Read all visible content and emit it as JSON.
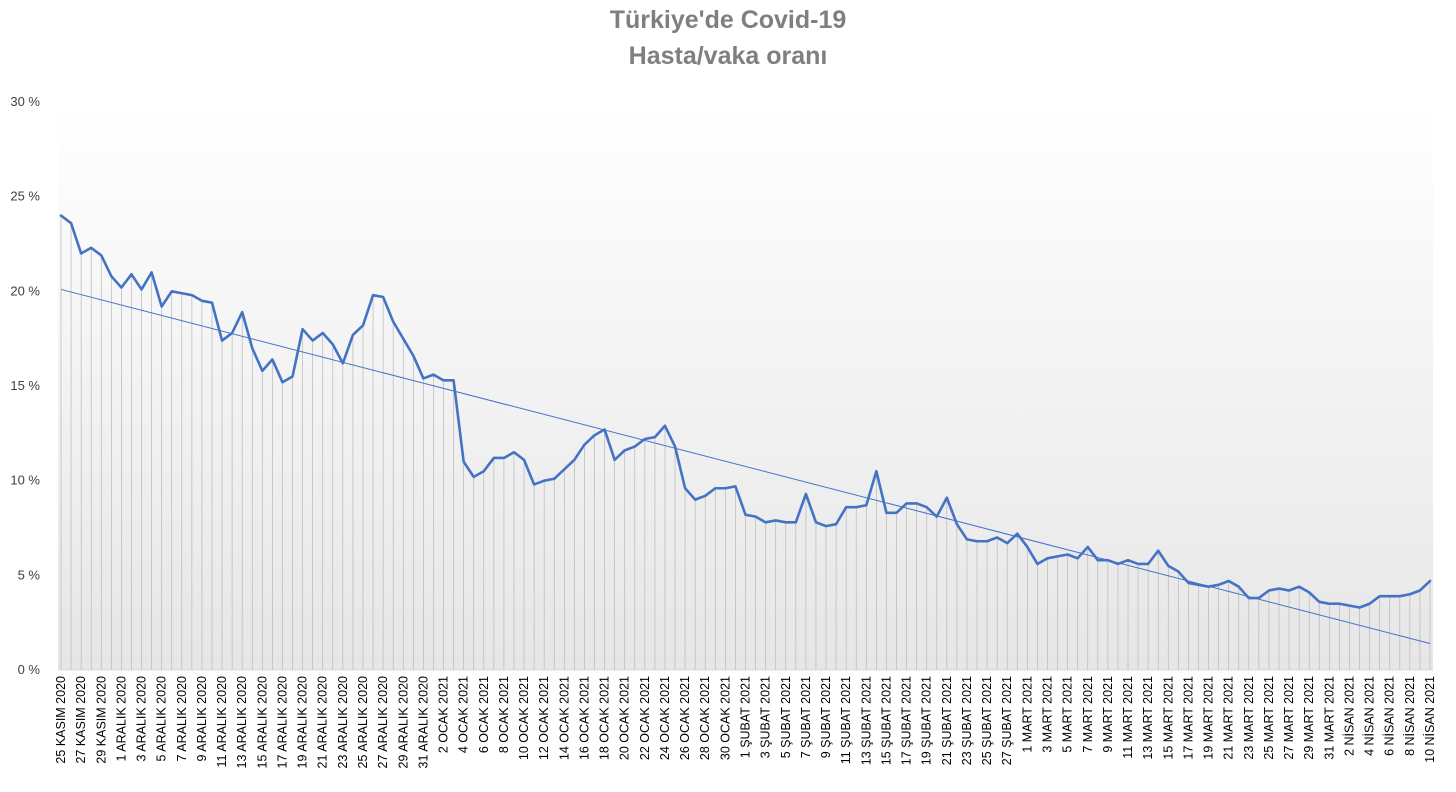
{
  "chart_data": {
    "type": "line",
    "title": "Türkiye'de Covid-19",
    "subtitle": "Hasta/vaka oranı",
    "xlabel": "",
    "ylabel": "",
    "ylim": [
      0,
      30
    ],
    "y_tick_labels": [
      "0 %",
      "5 %",
      "10 %",
      "15 %",
      "20 %",
      "25 %",
      "30 %"
    ],
    "x_tick_labels": [
      "25 KASIM 2020",
      "27 KASIM 2020",
      "29 KASIM 2020",
      "1 ARALIK 2020",
      "3 ARALIK 2020",
      "5 ARALIK 2020",
      "7 ARALIK 2020",
      "9 ARALIK 2020",
      "11 ARALIK 2020",
      "13 ARALIK 2020",
      "15 ARALIK 2020",
      "17 ARALIK 2020",
      "19 ARALIK 2020",
      "21 ARALIK 2020",
      "23 ARALIK 2020",
      "25 ARALIK 2020",
      "27 ARALIK 2020",
      "29 ARALIK 2020",
      "31 ARALIK 2020",
      "2 OCAK 2021",
      "4 OCAK 2021",
      "6 OCAK 2021",
      "8 OCAK 2021",
      "10 OCAK 2021",
      "12 OCAK 2021",
      "14 OCAK 2021",
      "16 OCAK 2021",
      "18 OCAK 2021",
      "20 OCAK 2021",
      "22 OCAK 2021",
      "24 OCAK 2021",
      "26 OCAK 2021",
      "28 OCAK 2021",
      "30 OCAK 2021",
      "1 ŞUBAT 2021",
      "3 ŞUBAT 2021",
      "5 ŞUBAT 2021",
      "7 ŞUBAT 2021",
      "9 ŞUBAT 2021",
      "11 ŞUBAT 2021",
      "13 ŞUBAT 2021",
      "15 ŞUBAT 2021",
      "17 ŞUBAT 2021",
      "19 ŞUBAT 2021",
      "21 ŞUBAT 2021",
      "23 ŞUBAT 2021",
      "25 ŞUBAT 2021",
      "27 ŞUBAT 2021",
      "1 MART 2021",
      "3 MART 2021",
      "5 MART 2021",
      "7 MART 2021",
      "9 MART 2021",
      "11 MART 2021",
      "13 MART 2021",
      "15 MART 2021",
      "17 MART 2021",
      "19 MART 2021",
      "21 MART 2021",
      "23 MART 2021",
      "25 MART 2021",
      "27 MART 2021",
      "29 MART 2021",
      "31 MART 2021",
      "2 NİSAN 2021",
      "4 NİSAN 2021",
      "6 NİSAN 2021",
      "8 NİSAN 2021",
      "10 NİSAN 2021"
    ],
    "x_range": [
      "25 KASIM 2020",
      "10 NİSAN 2021"
    ],
    "series": [
      {
        "name": "",
        "color": "#4472c4",
        "values": [
          24.0,
          23.6,
          22.0,
          22.3,
          21.9,
          20.8,
          20.2,
          20.9,
          20.1,
          21.0,
          19.2,
          20.0,
          19.9,
          19.8,
          19.5,
          19.4,
          17.4,
          17.8,
          18.9,
          17.0,
          15.8,
          16.4,
          15.2,
          15.5,
          18.0,
          17.4,
          17.8,
          17.2,
          16.2,
          17.7,
          18.2,
          19.8,
          19.7,
          18.4,
          17.5,
          16.6,
          15.4,
          15.6,
          15.3,
          15.3,
          11.0,
          10.2,
          10.5,
          11.2,
          11.2,
          11.5,
          11.1,
          9.8,
          10.0,
          10.1,
          10.6,
          11.1,
          11.9,
          12.4,
          12.7,
          11.1,
          11.6,
          11.8,
          12.2,
          12.3,
          12.9,
          11.8,
          9.6,
          9.0,
          9.2,
          9.6,
          9.6,
          9.7,
          8.2,
          8.1,
          7.8,
          7.9,
          7.8,
          7.8,
          9.3,
          7.8,
          7.6,
          7.7,
          8.6,
          8.6,
          8.7,
          10.5,
          8.3,
          8.3,
          8.8,
          8.8,
          8.6,
          8.1,
          9.1,
          7.7,
          6.9,
          6.8,
          6.8,
          7.0,
          6.7,
          7.2,
          6.5,
          5.6,
          5.9,
          6.0,
          6.1,
          5.9,
          6.5,
          5.8,
          5.8,
          5.6,
          5.8,
          5.6,
          5.6,
          6.3,
          5.5,
          5.2,
          4.6,
          4.5,
          4.4,
          4.5,
          4.7,
          4.4,
          3.8,
          3.8,
          4.2,
          4.3,
          4.2,
          4.4,
          4.1,
          3.6,
          3.5,
          3.5,
          3.4,
          3.3,
          3.5,
          3.9,
          3.9,
          3.9,
          4.0,
          4.2,
          4.7
        ]
      }
    ],
    "trendline": {
      "type": "linear",
      "start_value": 20.1,
      "end_value": 1.4,
      "color": "#4472c4"
    },
    "drop_lines": true,
    "background_gradient": [
      "#ffffff",
      "#e6e6e6"
    ],
    "grid": false,
    "legend": "none"
  }
}
